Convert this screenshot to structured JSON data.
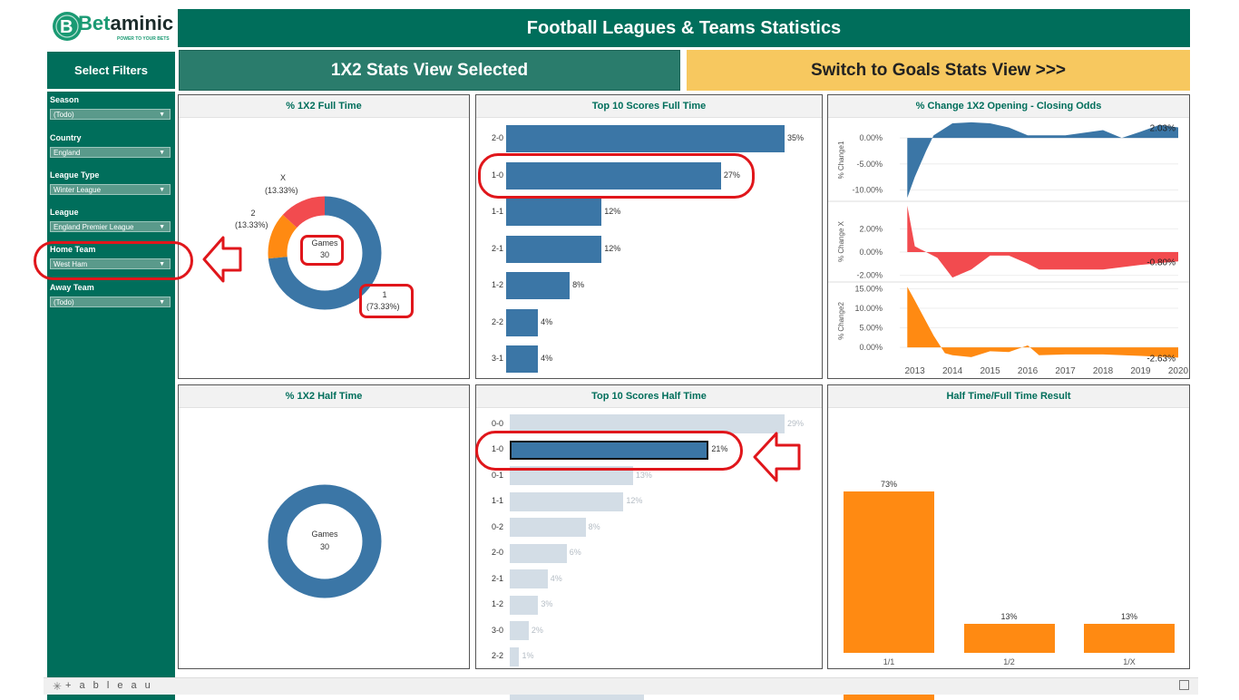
{
  "brand": {
    "name_prefix": "Bet",
    "name_suffix": "aminic",
    "tagline": "POWER TO YOUR BETS"
  },
  "header": {
    "title": "Football Leagues & Teams Statistics"
  },
  "filters": {
    "title": "Select Filters",
    "items": [
      {
        "label": "Season",
        "value": "(Todo)"
      },
      {
        "label": "Country",
        "value": "England"
      },
      {
        "label": "League Type",
        "value": "Winter League"
      },
      {
        "label": "League",
        "value": "England Premier League"
      },
      {
        "label": "Home Team",
        "value": "West Ham"
      },
      {
        "label": "Away Team",
        "value": "(Todo)"
      }
    ]
  },
  "view": {
    "selected": "1X2 Stats View Selected",
    "switch": "Switch to Goals Stats View >>>"
  },
  "panels": {
    "ft_1x2": {
      "title": "% 1X2 Full Time",
      "center_label": "Games",
      "center_value": "30",
      "slices": [
        {
          "name": "1",
          "pct_label": "(73.33%)",
          "value": 73.33,
          "color": "#3b76a6"
        },
        {
          "name": "2",
          "pct_label": "(13.33%)",
          "value": 13.33,
          "color": "#ff8a12"
        },
        {
          "name": "X",
          "pct_label": "(13.33%)",
          "value": 13.33,
          "color": "#f24b4f"
        }
      ]
    },
    "ht_1x2": {
      "title": "% 1X2 Half Time",
      "center_label": "Games",
      "center_value": "30"
    },
    "top_ft": {
      "title": "Top 10 Scores Full Time"
    },
    "top_ht": {
      "title": "Top 10 Scores Half Time"
    },
    "odds": {
      "title": "% Change 1X2 Opening - Closing Odds"
    },
    "htft": {
      "title": "Half Time/Full Time Result"
    }
  },
  "chart_data": [
    {
      "type": "bar",
      "orientation": "horizontal",
      "title": "Top 10 Scores Full Time",
      "categories": [
        "2-0",
        "1-0",
        "1-1",
        "2-1",
        "1-2",
        "2-2",
        "3-1"
      ],
      "values": [
        35,
        27,
        12,
        12,
        8,
        4,
        4
      ],
      "labels": [
        "35%",
        "27%",
        "12%",
        "12%",
        "8%",
        "4%",
        "4%"
      ],
      "color": "#3b76a6"
    },
    {
      "type": "bar",
      "orientation": "horizontal",
      "title": "Top 10 Scores Half Time",
      "categories": [
        "0-0",
        "1-0",
        "0-1",
        "1-1",
        "0-2",
        "2-0",
        "2-1",
        "1-2",
        "3-0",
        "2-2"
      ],
      "values": [
        29,
        21,
        13,
        12,
        8,
        6,
        4,
        3,
        2,
        1
      ],
      "labels": [
        "29%",
        "21%",
        "13%",
        "12%",
        "8%",
        "6%",
        "4%",
        "3%",
        "2%",
        "1%"
      ],
      "highlight": "1-0",
      "color": "#3b76a6",
      "muted_color": "#d3dde6"
    },
    {
      "type": "bar",
      "title": "Half Time/Full Time Result",
      "categories": [
        "1/1",
        "1/2",
        "1/X"
      ],
      "values": [
        73,
        13,
        13
      ],
      "labels": [
        "73%",
        "13%",
        "13%"
      ],
      "color": "#ff8a12"
    },
    {
      "type": "area",
      "title": "% Change 1X2 Opening - Closing Odds",
      "x_ticks": [
        "2013",
        "2014",
        "2015",
        "2016",
        "2017",
        "2018",
        "2019",
        "2020"
      ],
      "series": [
        {
          "name": "% Change1",
          "y_ticks": [
            "0.00%",
            "-5.00%",
            "-10.00%"
          ],
          "end_label": "2.03%",
          "color": "#3b76a6",
          "x": [
            2012.8,
            2013.0,
            2013.3,
            2013.5,
            2014.0,
            2014.5,
            2015.0,
            2015.5,
            2016.0,
            2017.0,
            2018.0,
            2018.5,
            2019.0,
            2019.5,
            2020.0
          ],
          "y": [
            -11.5,
            -7.5,
            -2.5,
            0.5,
            2.8,
            3.0,
            2.8,
            2.0,
            0.5,
            0.5,
            1.5,
            0.0,
            1.2,
            2.5,
            2.03
          ]
        },
        {
          "name": "% Change X",
          "y_ticks": [
            "2.00%",
            "0.00%",
            "-2.00%"
          ],
          "end_label": "-0.80%",
          "color": "#f24b4f",
          "x": [
            2012.8,
            2013.0,
            2013.3,
            2013.6,
            2014.0,
            2014.5,
            2015.0,
            2015.5,
            2016.0,
            2016.3,
            2017.0,
            2018.0,
            2019.0,
            2020.0
          ],
          "y": [
            4.0,
            0.5,
            0.0,
            -0.5,
            -2.2,
            -1.5,
            -0.3,
            -0.3,
            -1.0,
            -1.5,
            -1.5,
            -1.5,
            -1.1,
            -0.8
          ]
        },
        {
          "name": "% Change2",
          "y_ticks": [
            "15.00%",
            "10.00%",
            "5.00%",
            "0.00%"
          ],
          "end_label": "-2.63%",
          "color": "#ff8a12",
          "x": [
            2012.8,
            2013.0,
            2013.5,
            2013.8,
            2014.0,
            2014.5,
            2015.0,
            2015.5,
            2016.0,
            2016.3,
            2017.0,
            2018.0,
            2019.0,
            2020.0
          ],
          "y": [
            15.5,
            12.0,
            3.0,
            -1.5,
            -2.0,
            -2.5,
            -1.0,
            -1.2,
            0.5,
            -2.0,
            -1.8,
            -1.8,
            -2.2,
            -2.63
          ]
        }
      ]
    }
  ],
  "footer": {
    "brand": "+ a b l e a u",
    "full_text": "❈ + a b l e a u"
  }
}
